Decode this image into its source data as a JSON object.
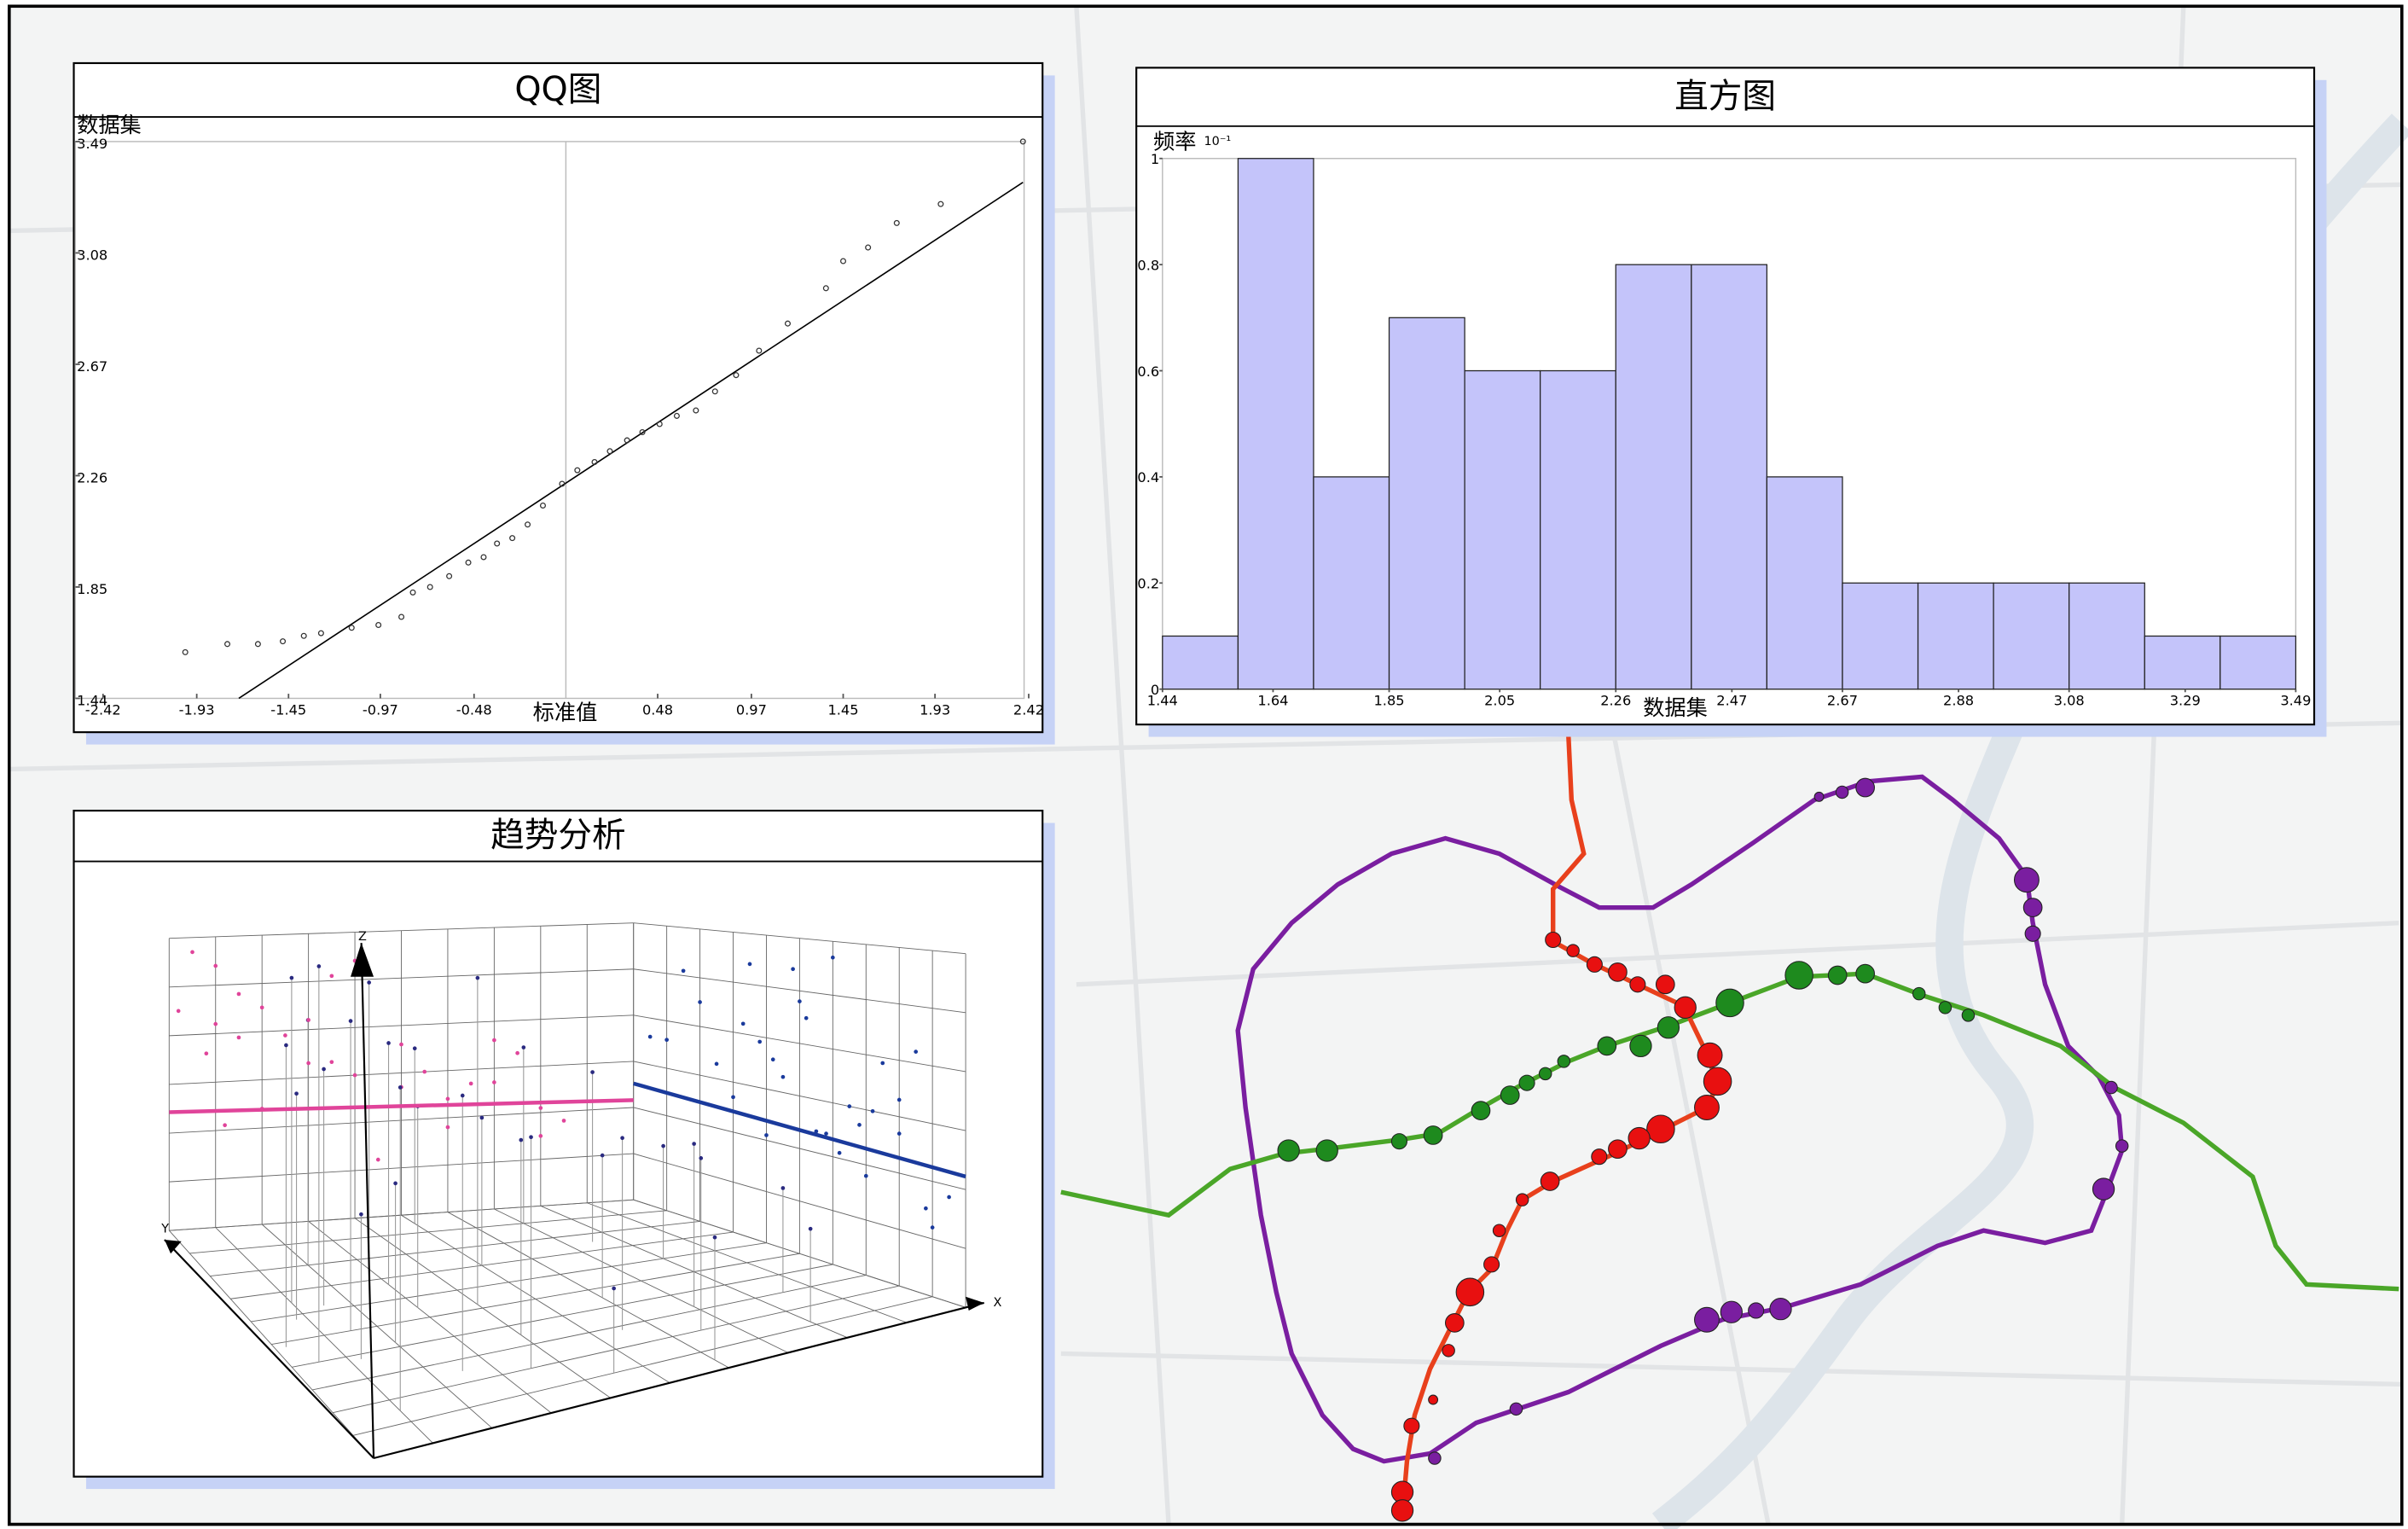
{
  "chart_data": [
    {
      "type": "scatter",
      "title": "QQ图",
      "ylabel": "数据集",
      "xlabel": "标准值",
      "x": [
        -1.99,
        -1.77,
        -1.61,
        -1.48,
        -1.37,
        -1.28,
        -1.12,
        -0.98,
        -0.86,
        -0.8,
        -0.71,
        -0.61,
        -0.51,
        -0.43,
        -0.36,
        -0.28,
        -0.2,
        -0.12,
        -0.02,
        0.06,
        0.15,
        0.23,
        0.32,
        0.4,
        0.49,
        0.58,
        0.68,
        0.78,
        0.89,
        1.01,
        1.16,
        1.36,
        1.45,
        1.58,
        1.73,
        1.96,
        2.39
      ],
      "values": [
        1.61,
        1.64,
        1.64,
        1.65,
        1.67,
        1.68,
        1.7,
        1.71,
        1.74,
        1.83,
        1.85,
        1.89,
        1.94,
        1.96,
        2.01,
        2.03,
        2.08,
        2.15,
        2.23,
        2.28,
        2.31,
        2.35,
        2.39,
        2.42,
        2.45,
        2.48,
        2.5,
        2.57,
        2.63,
        2.72,
        2.82,
        2.95,
        3.05,
        3.1,
        3.19,
        3.26,
        3.49
      ],
      "color": "#333333",
      "reference_line": {
        "x": [
          -1.71,
          2.39
        ],
        "values": [
          1.44,
          3.34
        ],
        "color": "#000000"
      },
      "xlim": [
        -2.42,
        2.42
      ],
      "ylim": [
        1.44,
        3.49
      ],
      "xticks": [
        -2.42,
        -1.93,
        -1.45,
        -0.97,
        -0.48,
        0.48,
        0.97,
        1.45,
        1.93,
        2.42
      ],
      "yticks": [
        1.44,
        1.85,
        2.26,
        2.67,
        3.08,
        3.49
      ]
    },
    {
      "type": "histogram",
      "title": "直方图",
      "ylabel": "频率",
      "y_exponent": "10⁻¹",
      "xlabel": "数据集",
      "bins": [
        1.44,
        1.5767,
        1.7133,
        1.85,
        1.9867,
        2.1233,
        2.26,
        2.3967,
        2.5333,
        2.67,
        2.8067,
        2.9433,
        3.08,
        3.2167,
        3.3533,
        3.49
      ],
      "values": [
        0.1,
        1,
        0.4,
        0.7,
        0.6,
        0.6,
        0.8,
        0.8,
        0.4,
        0.2,
        0.2,
        0.2,
        0.2,
        0.1,
        0.1
      ],
      "color": "#c4c4fa",
      "xlim": [
        1.44,
        3.49
      ],
      "ylim": [
        0,
        1
      ],
      "xticks": [
        1.44,
        1.64,
        1.85,
        2.05,
        2.26,
        2.47,
        2.67,
        2.88,
        3.08,
        3.29,
        3.49
      ],
      "yticks": [
        0,
        0.2,
        0.4,
        0.6,
        0.8,
        1
      ]
    },
    {
      "type": "trend3d",
      "title": "趋势分析",
      "xlabel": "X",
      "ylabel": "Y",
      "zlabel": "Z",
      "x": [
        0.1,
        0.2,
        0.3,
        0.35,
        0.4,
        0.45,
        0.5,
        0.55,
        0.6,
        0.65,
        0.7,
        0.75,
        0.8,
        0.85,
        0.9,
        0.15,
        0.25,
        0.42,
        0.58,
        0.72,
        0.88,
        0.33,
        0.48,
        0.62,
        0.95,
        0.05,
        0.52,
        0.68,
        0.38,
        0.8
      ],
      "y": [
        0.3,
        0.8,
        0.5,
        0.9,
        0.2,
        0.7,
        0.85,
        0.4,
        0.95,
        0.6,
        0.15,
        0.75,
        0.35,
        0.9,
        0.55,
        0.65,
        0.25,
        0.92,
        0.8,
        0.45,
        0.2,
        0.7,
        0.6,
        0.88,
        0.4,
        0.5,
        0.98,
        0.3,
        0.85,
        0.65
      ],
      "values": [
        0.6,
        0.75,
        0.45,
        0.9,
        0.35,
        0.55,
        0.8,
        0.4,
        0.95,
        0.5,
        0.3,
        0.65,
        0.45,
        0.7,
        0.2,
        0.85,
        0.55,
        0.6,
        0.4,
        0.5,
        0.25,
        0.7,
        0.9,
        0.35,
        0.3,
        0.6,
        0.75,
        0.45,
        0.65,
        0.55
      ],
      "color": "#2a2a80",
      "xz_color": "#e0449a",
      "yz_color": "#1a3a9c",
      "trend_xz": [
        0.36,
        0.405
      ],
      "trend_yz": [
        0.42,
        0.37
      ],
      "xlim": [
        0,
        1
      ],
      "ylim": [
        0,
        1
      ],
      "zlim": [
        0,
        1
      ]
    }
  ]
}
